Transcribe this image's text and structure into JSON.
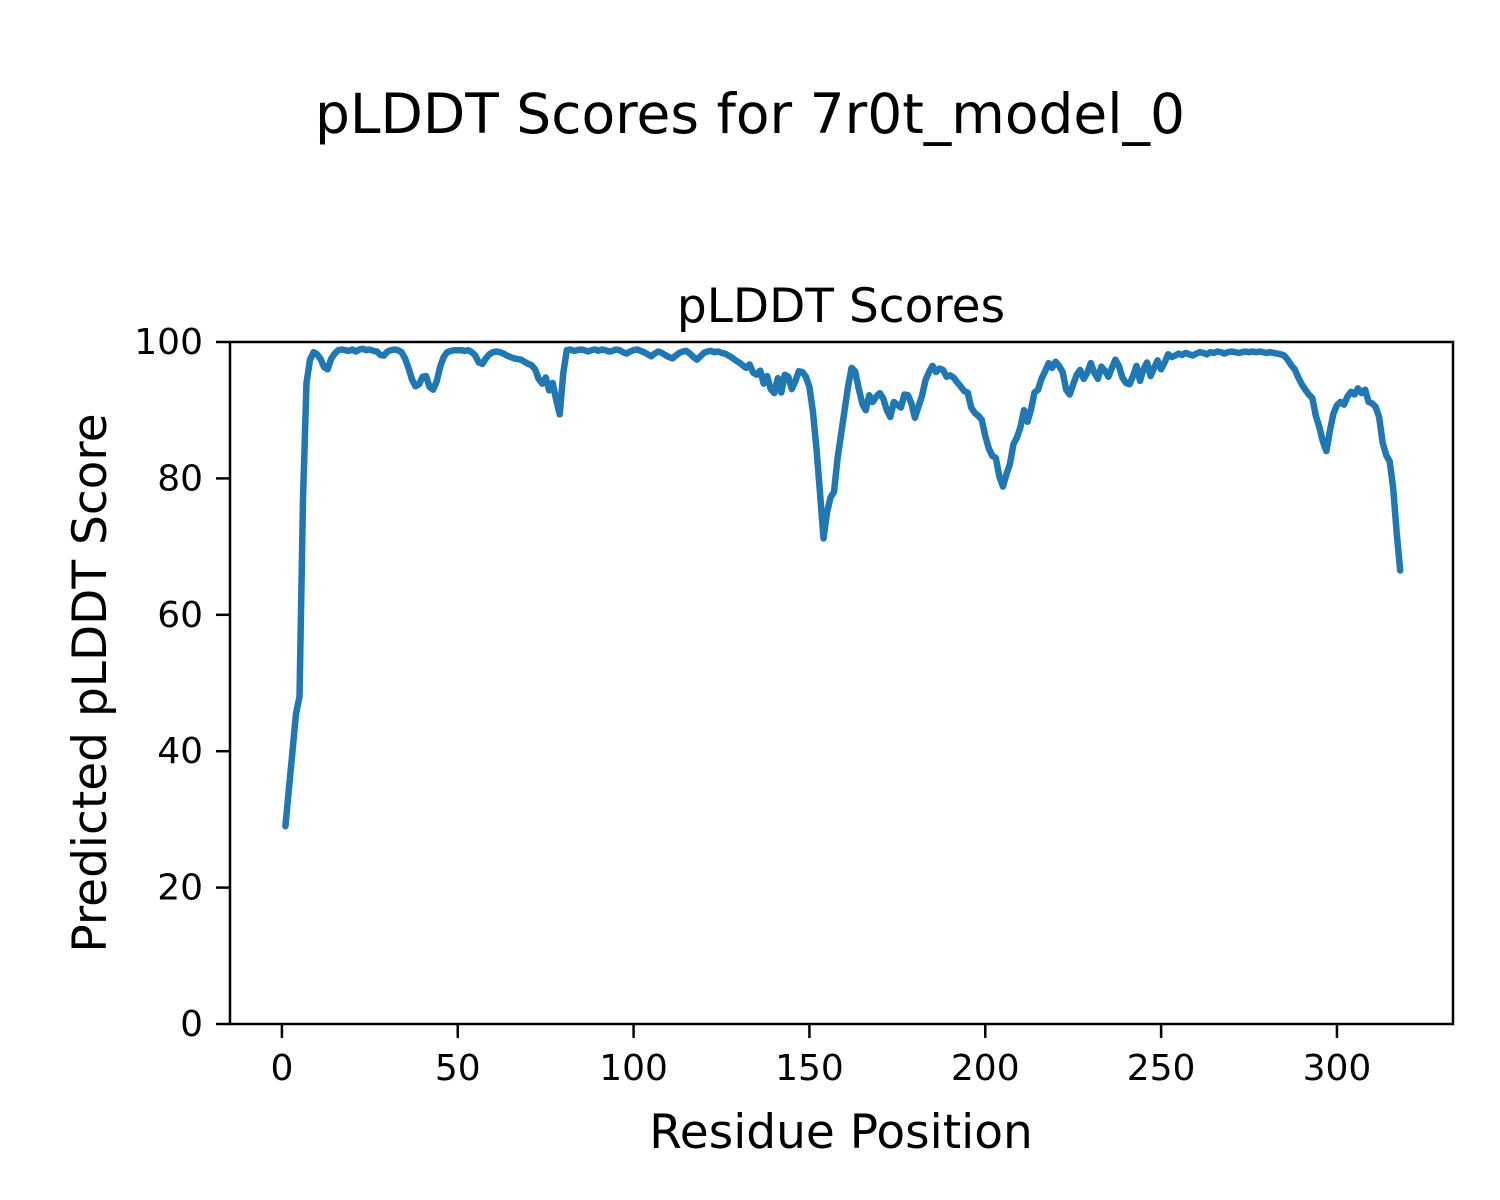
{
  "figure": {
    "suptitle": "pLDDT Scores for 7r0t_model_0",
    "background": "#ffffff",
    "text_color": "#000000"
  },
  "chart_data": {
    "type": "line",
    "title": "pLDDT Scores",
    "xlabel": "Residue Position",
    "ylabel": "Predicted pLDDT Score",
    "xlim": [
      -14.76,
      333.0
    ],
    "ylim": [
      0,
      100
    ],
    "xticks": [
      0,
      50,
      100,
      150,
      200,
      250,
      300
    ],
    "yticks": [
      0,
      20,
      40,
      60,
      80,
      100
    ],
    "grid": false,
    "legend": "none",
    "series": [
      {
        "name": "pLDDT",
        "color": "#1f77b4",
        "x_start": 1,
        "x_step": 1,
        "values": [
          29.0,
          34.5,
          40.0,
          45.5,
          48.0,
          77.0,
          94.0,
          97.4,
          98.5,
          98.2,
          97.5,
          96.3,
          96.0,
          97.5,
          98.3,
          98.8,
          98.9,
          98.8,
          98.7,
          98.9,
          98.6,
          98.9,
          99.0,
          98.8,
          98.9,
          98.7,
          98.6,
          98.1,
          98.0,
          98.6,
          98.8,
          98.9,
          98.8,
          98.5,
          97.6,
          96.2,
          94.5,
          93.5,
          93.8,
          94.9,
          95.0,
          93.4,
          93.0,
          94.2,
          96.4,
          97.8,
          98.5,
          98.7,
          98.8,
          98.8,
          98.8,
          98.7,
          98.8,
          98.5,
          98.0,
          97.0,
          96.8,
          97.6,
          98.2,
          98.5,
          98.6,
          98.5,
          98.3,
          98.0,
          97.8,
          97.6,
          97.5,
          97.4,
          97.1,
          96.8,
          96.6,
          96.0,
          94.6,
          93.9,
          94.8,
          92.9,
          94.0,
          91.5,
          89.4,
          95.5,
          98.8,
          98.9,
          98.7,
          98.8,
          98.9,
          98.8,
          98.6,
          98.8,
          98.9,
          98.7,
          98.9,
          98.8,
          98.6,
          98.7,
          98.9,
          98.8,
          98.5,
          98.3,
          98.6,
          98.8,
          98.9,
          98.7,
          98.5,
          98.2,
          97.9,
          98.3,
          98.6,
          98.4,
          98.1,
          97.8,
          97.6,
          98.0,
          98.4,
          98.6,
          98.7,
          98.3,
          97.8,
          97.4,
          97.9,
          98.4,
          98.6,
          98.7,
          98.5,
          98.6,
          98.4,
          98.3,
          98.0,
          97.7,
          97.3,
          97.0,
          96.6,
          96.2,
          96.7,
          95.5,
          95.2,
          95.8,
          93.9,
          95.0,
          93.1,
          92.5,
          94.7,
          92.6,
          95.2,
          94.9,
          93.1,
          94.3,
          95.7,
          95.6,
          94.9,
          93.4,
          89.8,
          84.3,
          77.9,
          71.2,
          75.0,
          77.2,
          78.0,
          83.0,
          86.5,
          90.0,
          93.5,
          96.2,
          95.7,
          93.2,
          91.0,
          90.0,
          92.2,
          91.2,
          92.0,
          92.5,
          91.7,
          90.0,
          89.0,
          91.2,
          90.8,
          90.4,
          92.3,
          92.2,
          91.0,
          88.9,
          90.5,
          92.1,
          94.4,
          95.6,
          96.5,
          95.6,
          96.1,
          95.9,
          94.9,
          95.1,
          94.8,
          94.1,
          93.5,
          92.8,
          92.6,
          90.4,
          89.6,
          89.2,
          88.6,
          86.2,
          84.4,
          83.3,
          83.0,
          80.3,
          78.8,
          80.6,
          82.1,
          85.0,
          86.0,
          87.5,
          90.0,
          88.3,
          90.1,
          92.6,
          93.0,
          94.6,
          95.7,
          96.9,
          96.2,
          97.1,
          96.5,
          95.6,
          93.0,
          92.3,
          93.8,
          95.2,
          95.9,
          94.6,
          95.5,
          96.9,
          95.5,
          94.6,
          96.4,
          95.8,
          94.9,
          96.2,
          97.4,
          96.5,
          94.8,
          94.0,
          93.8,
          95.0,
          96.5,
          94.3,
          96.0,
          97.0,
          95.0,
          96.2,
          97.3,
          96.0,
          97.0,
          98.2,
          97.8,
          98.0,
          98.3,
          98.1,
          98.4,
          98.2,
          98.0,
          98.3,
          98.5,
          98.4,
          98.2,
          98.5,
          98.4,
          98.6,
          98.5,
          98.3,
          98.5,
          98.6,
          98.5,
          98.4,
          98.5,
          98.6,
          98.5,
          98.6,
          98.5,
          98.6,
          98.5,
          98.4,
          98.5,
          98.4,
          98.3,
          98.2,
          98.0,
          97.4,
          96.6,
          96.0,
          94.8,
          93.8,
          93.0,
          92.3,
          91.8,
          89.2,
          87.5,
          85.4,
          84.0,
          87.0,
          89.5,
          90.7,
          91.2,
          90.8,
          92.0,
          92.7,
          92.3,
          93.2,
          92.5,
          93.0,
          91.2,
          91.0,
          90.5,
          89.0,
          85.2,
          83.4,
          82.5,
          78.5,
          72.0,
          66.5
        ]
      }
    ]
  }
}
